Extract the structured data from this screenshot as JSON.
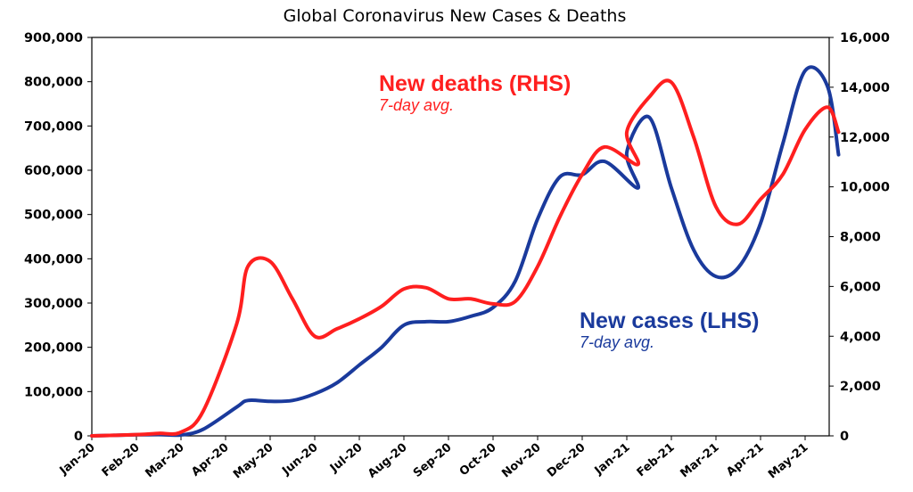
{
  "chart_data": {
    "type": "line",
    "title": "Global Coronavirus New Cases & Deaths",
    "x": [
      "Jan-20",
      "Feb-20",
      "Mar-20",
      "Apr-20",
      "May-20",
      "Jun-20",
      "Jul-20",
      "Aug-20",
      "Sep-20",
      "Oct-20",
      "Nov-20",
      "Dec-20",
      "Jan-21",
      "Feb-21",
      "Mar-21",
      "Apr-21",
      "May-21"
    ],
    "y_left": {
      "lim": [
        0,
        900000
      ],
      "ticks": [
        "0",
        "100,000",
        "200,000",
        "300,000",
        "400,000",
        "500,000",
        "600,000",
        "700,000",
        "800,000",
        "900,000"
      ]
    },
    "y_right": {
      "lim": [
        0,
        16000
      ],
      "ticks": [
        "0",
        "2,000",
        "4,000",
        "6,000",
        "8,000",
        "10,000",
        "12,000",
        "14,000",
        "16,000"
      ]
    },
    "grid": false,
    "series": [
      {
        "name": "New cases (LHS)",
        "note": "7-day avg.",
        "axis": "left",
        "color": "#1a3a9c",
        "points": [
          [
            "Jan-20",
            0
          ],
          [
            "Feb-20",
            2500
          ],
          [
            "Feb-20 mid",
            3000
          ],
          [
            "Mar-20",
            2000
          ],
          [
            "Mar-20 mid",
            15000
          ],
          [
            "Apr-20 early",
            65000
          ],
          [
            "Apr-20 mid",
            80000
          ],
          [
            "May-20",
            78000
          ],
          [
            "May-20 mid",
            80000
          ],
          [
            "Jun-20",
            95000
          ],
          [
            "Jun-20 mid",
            120000
          ],
          [
            "Jul-20",
            160000
          ],
          [
            "Jul-20 mid",
            200000
          ],
          [
            "Aug-20",
            250000
          ],
          [
            "Aug-20 mid",
            258000
          ],
          [
            "Sep-20",
            258000
          ],
          [
            "Sep-20 mid",
            270000
          ],
          [
            "Oct-20",
            290000
          ],
          [
            "Oct-20 mid",
            350000
          ],
          [
            "Nov-20",
            490000
          ],
          [
            "Nov-20 mid",
            585000
          ],
          [
            "Dec-20",
            590000
          ],
          [
            "Dec-20 mid",
            620000
          ],
          [
            "Jan-21 early",
            560000
          ],
          [
            "Jan-21",
            640000
          ],
          [
            "Jan-21 mid",
            720000
          ],
          [
            "Feb-21",
            560000
          ],
          [
            "Feb-21 mid",
            420000
          ],
          [
            "Mar-21",
            360000
          ],
          [
            "Mar-21 mid",
            380000
          ],
          [
            "Apr-21",
            480000
          ],
          [
            "Apr-21 mid",
            660000
          ],
          [
            "May-21",
            825000
          ],
          [
            "May-21 mid",
            790000
          ],
          [
            "May-21 end",
            635000
          ]
        ]
      },
      {
        "name": "New deaths (RHS)",
        "note": "7-day avg.",
        "axis": "right",
        "color": "#ff1f1f",
        "points": [
          [
            "Jan-20",
            0
          ],
          [
            "Feb-20",
            50
          ],
          [
            "Feb-20 mid",
            100
          ],
          [
            "Mar-20",
            150
          ],
          [
            "Mar-20 mid",
            1000
          ],
          [
            "Apr-20 early",
            4500
          ],
          [
            "Apr-20 mid",
            6800
          ],
          [
            "May-20",
            7000
          ],
          [
            "May-20 mid",
            5500
          ],
          [
            "Jun-20",
            4000
          ],
          [
            "Jun-20 mid",
            4300
          ],
          [
            "Jul-20",
            4700
          ],
          [
            "Jul-20 mid",
            5200
          ],
          [
            "Aug-20",
            5900
          ],
          [
            "Aug-20 mid",
            5950
          ],
          [
            "Sep-20",
            5500
          ],
          [
            "Sep-20 mid",
            5500
          ],
          [
            "Oct-20",
            5300
          ],
          [
            "Oct-20 mid",
            5400
          ],
          [
            "Nov-20",
            6800
          ],
          [
            "Nov-20 mid",
            8800
          ],
          [
            "Dec-20",
            10500
          ],
          [
            "Dec-20 mid",
            11600
          ],
          [
            "Jan-21 early",
            10900
          ],
          [
            "Jan-21",
            12200
          ],
          [
            "Jan-21 mid",
            13600
          ],
          [
            "Feb-21",
            14200
          ],
          [
            "Feb-21 mid",
            12000
          ],
          [
            "Mar-21",
            9200
          ],
          [
            "Mar-21 mid",
            8500
          ],
          [
            "Apr-21",
            9500
          ],
          [
            "Apr-21 mid",
            10500
          ],
          [
            "May-21",
            12300
          ],
          [
            "May-21 mid",
            13200
          ],
          [
            "May-21 end",
            12200
          ]
        ]
      }
    ],
    "annotations": [
      {
        "main": "New deaths (RHS)",
        "sub": "7-day avg.",
        "color": "#ff1f1f"
      },
      {
        "main": "New cases (LHS)",
        "sub": "7-day avg.",
        "color": "#1a3a9c"
      }
    ]
  }
}
